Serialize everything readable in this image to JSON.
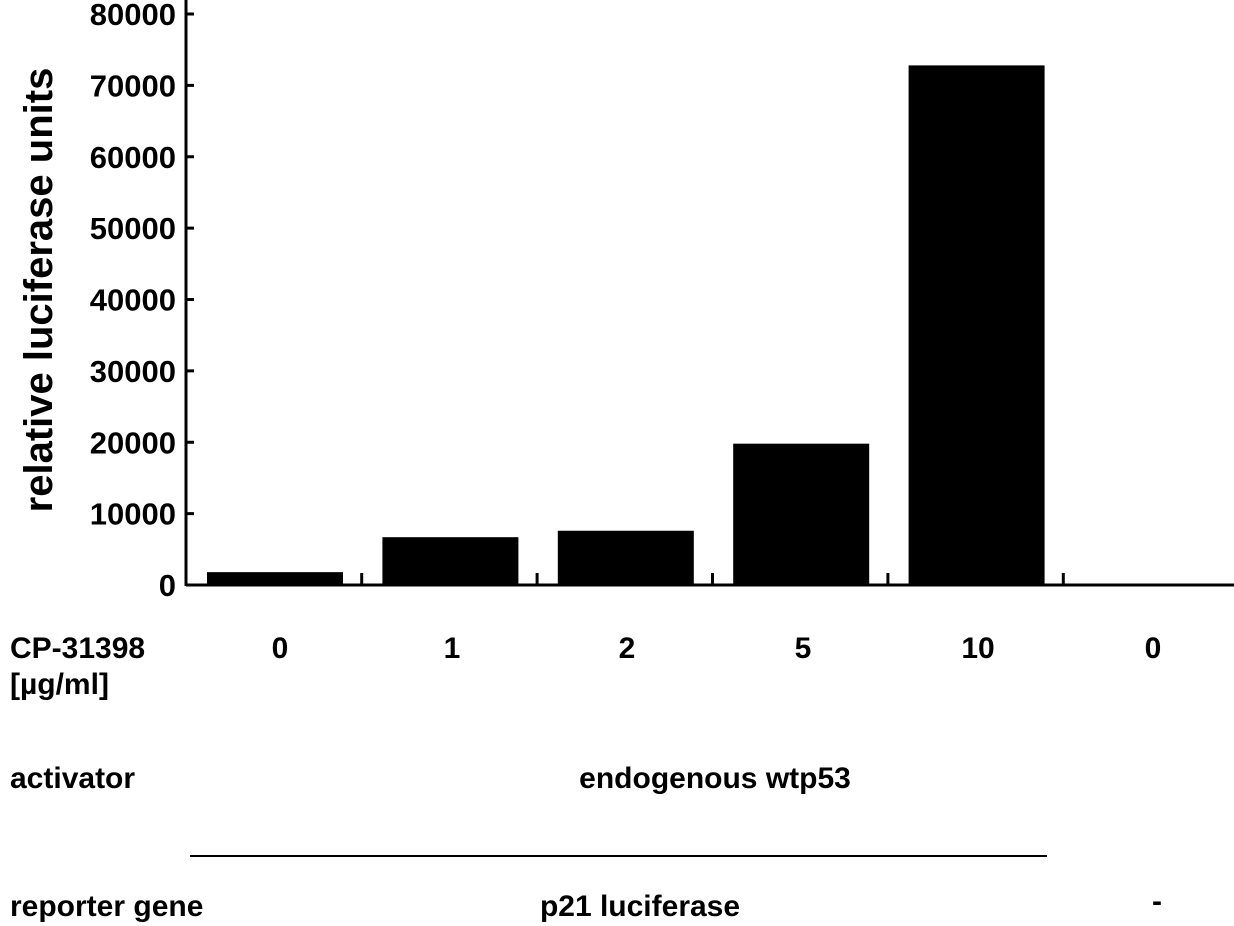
{
  "chart_data": {
    "type": "bar",
    "title": "",
    "xlabel": "",
    "ylabel": "relative luciferase units",
    "ylim": [
      0,
      80000
    ],
    "yticks": [
      0,
      10000,
      20000,
      30000,
      40000,
      50000,
      60000,
      70000,
      80000
    ],
    "ytick_labels": [
      "0",
      "10000",
      "20000",
      "30000",
      "40000",
      "50000",
      "60000",
      "70000",
      "80000"
    ],
    "categories": [
      "0",
      "1",
      "2",
      "5",
      "10",
      "0"
    ],
    "values": [
      1800,
      6700,
      7600,
      19800,
      72800,
      0
    ],
    "bar_color": "#000000",
    "grid": false
  },
  "table": {
    "row1_label": "CP-31398",
    "row1_unit": "[µg/ml]",
    "row2_label": "activator",
    "row2_value": "endogenous wtp53",
    "row3_label": "reporter gene",
    "row3_value": "p21 luciferase",
    "row3_last": "-"
  }
}
